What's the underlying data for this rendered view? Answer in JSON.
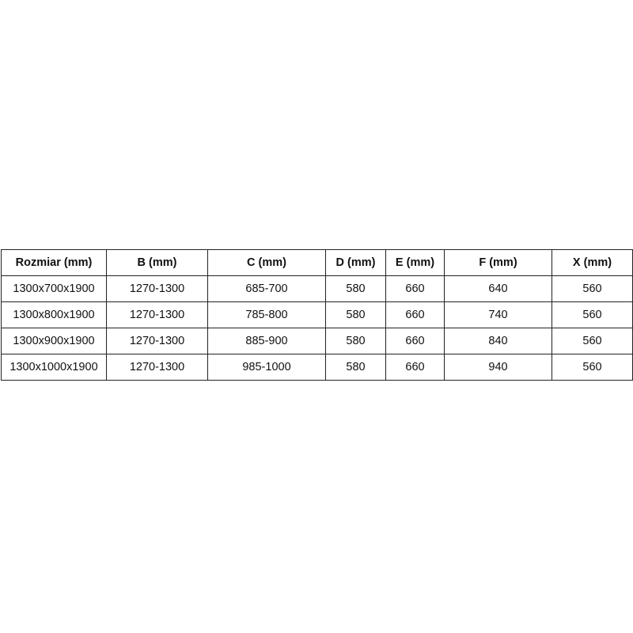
{
  "table": {
    "headers": [
      "Rozmiar (mm)",
      "B (mm)",
      "C (mm)",
      "D (mm)",
      "E (mm)",
      "F (mm)",
      "X (mm)"
    ],
    "rows": [
      [
        "1300x700x1900",
        "1270-1300",
        "685-700",
        "580",
        "660",
        "640",
        "560"
      ],
      [
        "1300x800x1900",
        "1270-1300",
        "785-800",
        "580",
        "660",
        "740",
        "560"
      ],
      [
        "1300x900x1900",
        "1270-1300",
        "885-900",
        "580",
        "660",
        "840",
        "560"
      ],
      [
        "1300x1000x1900",
        "1270-1300",
        "985-1000",
        "580",
        "660",
        "940",
        "560"
      ]
    ]
  }
}
